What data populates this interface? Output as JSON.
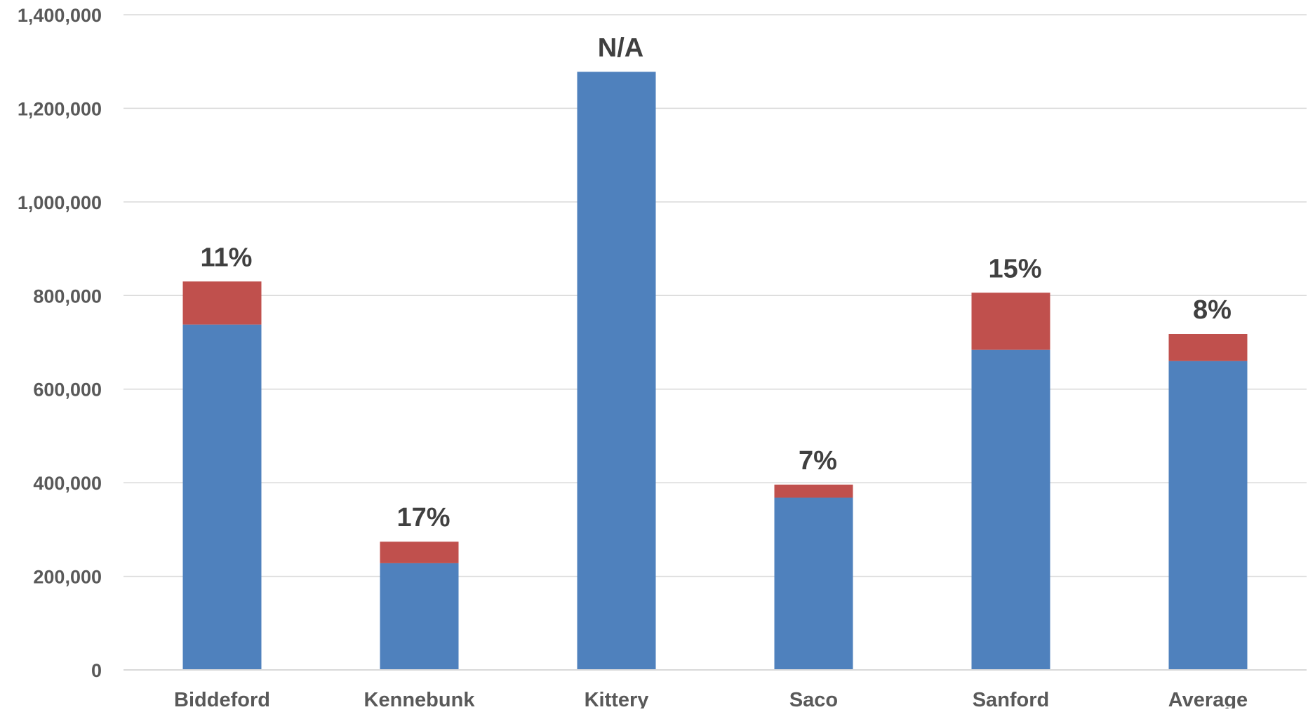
{
  "chart_data": {
    "type": "bar",
    "stacked": true,
    "categories": [
      "Biddeford",
      "Kennebunk",
      "Kittery",
      "Saco",
      "Sanford",
      "Average"
    ],
    "series": [
      {
        "values": [
          738000,
          228000,
          1278000,
          368000,
          684000,
          660000
        ]
      },
      {
        "values": [
          92000,
          46000,
          0,
          28000,
          122000,
          58000
        ]
      }
    ],
    "data_labels": [
      "11%",
      "17%",
      "N/A",
      "7%",
      "15%",
      "8%"
    ],
    "y_ticks": [
      "0",
      "200,000",
      "400,000",
      "600,000",
      "800,000",
      "1,000,000",
      "1,200,000",
      "1,400,000"
    ],
    "ylim": [
      0,
      1400000
    ],
    "grid": true,
    "legend": "none",
    "colors": {
      "base": "#4F81BD",
      "top": "#C0504D",
      "grid": "#D9D9D9"
    },
    "title": "",
    "xlabel": "",
    "ylabel": ""
  }
}
